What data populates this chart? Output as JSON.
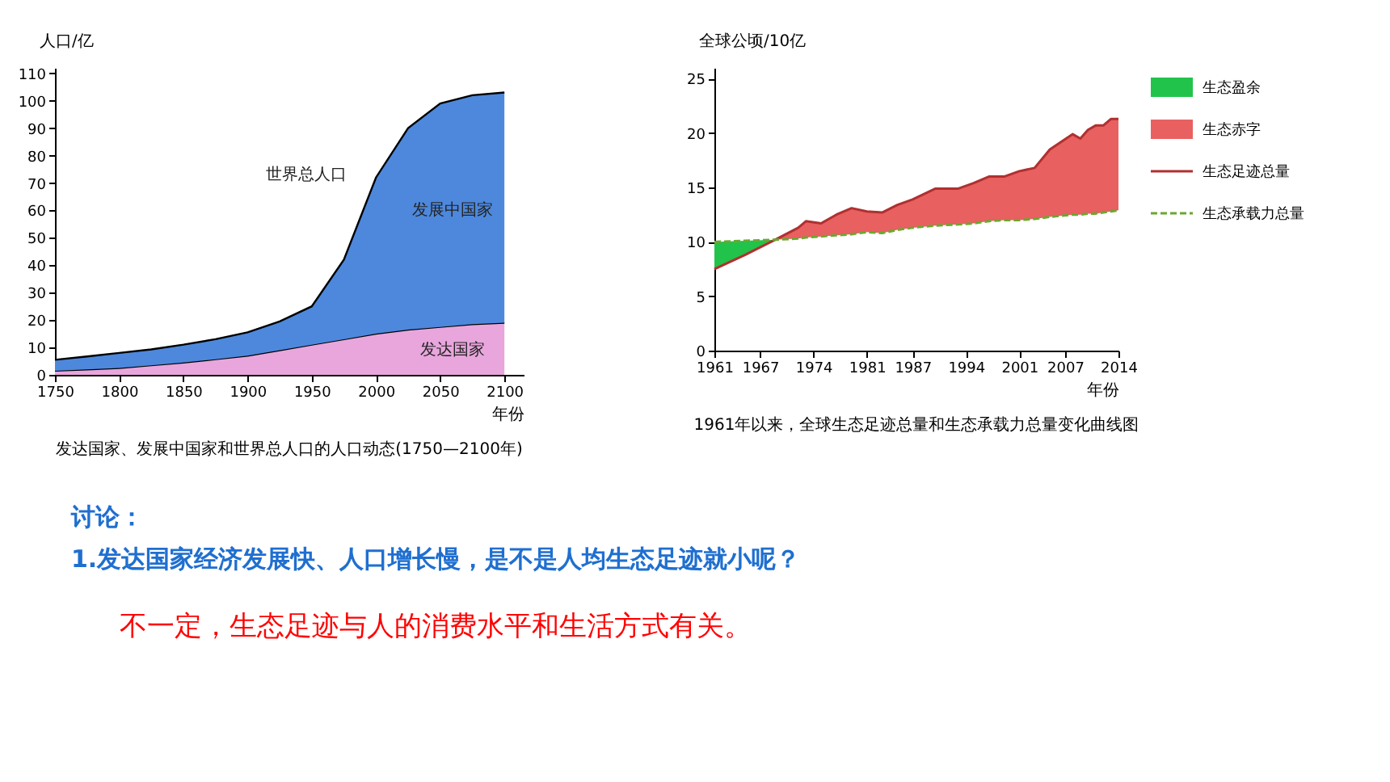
{
  "chart_data": [
    {
      "type": "area",
      "stacked": true,
      "title": "发达国家、发展中国家和世界总人口的人口动态(1750—2100年)",
      "xlabel": "年份",
      "ylabel": "人口/亿",
      "x": [
        1750,
        1775,
        1800,
        1825,
        1850,
        1875,
        1900,
        1925,
        1950,
        1975,
        2000,
        2025,
        2050,
        2075,
        2100
      ],
      "xlim": [
        1750,
        2115
      ],
      "xticks": [
        1750,
        1800,
        1850,
        1900,
        1950,
        2000,
        2050,
        2100
      ],
      "ylim": [
        0,
        112
      ],
      "yticks": [
        0,
        10,
        20,
        30,
        40,
        50,
        60,
        70,
        80,
        90,
        100,
        110
      ],
      "series": [
        {
          "name": "发达国家",
          "color": "#e8a6dc",
          "values": [
            1.5,
            2,
            2.5,
            3.5,
            4.5,
            5.7,
            7,
            9,
            11,
            13,
            15,
            16.5,
            17.5,
            18.5,
            19
          ]
        },
        {
          "name": "发展中国家",
          "color": "#4d88dc",
          "values": [
            4,
            4.7,
            5.5,
            5.8,
            6.5,
            7.3,
            8.5,
            10.5,
            14,
            29,
            57,
            73.5,
            81.5,
            83.5,
            84
          ]
        }
      ],
      "annotations": [
        {
          "text": "世界总人口",
          "x": 1990,
          "y": 60
        }
      ]
    },
    {
      "type": "line",
      "title": "1961年以来，全球生态足迹总量和生态承载力总量变化曲线图",
      "xlabel": "年份",
      "ylabel": "全球公顷/10亿",
      "xlim": [
        1961,
        2014
      ],
      "xticks": [
        1961,
        1967,
        1974,
        1981,
        1987,
        1994,
        2001,
        2007,
        2014
      ],
      "ylim": [
        0,
        26
      ],
      "yticks": [
        0,
        5,
        10,
        15,
        20,
        25
      ],
      "legend": "right",
      "marker": "none",
      "series": [
        {
          "name": "生态盈余",
          "type": "area",
          "color": "#22c34a",
          "x": [
            1961,
            1965,
            1969
          ],
          "values": [
            10.0,
            10.1,
            10.2
          ]
        },
        {
          "name": "生态赤字",
          "type": "area",
          "color": "#e86060",
          "x": [
            1969,
            1972,
            1973,
            1975,
            1977,
            1979,
            1981,
            1983,
            1985,
            1987,
            1990,
            1993,
            1995,
            1997,
            1999,
            2001,
            2003,
            2005,
            2008,
            2009,
            2010,
            2011,
            2012,
            2013,
            2014
          ],
          "values": [
            10.2,
            11.3,
            11.9,
            11.7,
            12.5,
            13.1,
            12.8,
            12.7,
            13.4,
            13.9,
            14.9,
            14.9,
            15.4,
            16.0,
            16.0,
            16.5,
            16.8,
            18.5,
            19.9,
            19.5,
            20.3,
            20.7,
            20.7,
            21.3,
            21.3
          ]
        },
        {
          "name": "生态足迹总量",
          "type": "line",
          "color": "#b03030",
          "line_style": "solid",
          "x": [
            1961,
            1965,
            1969,
            1972,
            1973,
            1975,
            1977,
            1979,
            1981,
            1983,
            1985,
            1987,
            1990,
            1993,
            1995,
            1997,
            1999,
            2001,
            2003,
            2005,
            2008,
            2009,
            2010,
            2011,
            2012,
            2013,
            2014
          ],
          "values": [
            7.5,
            8.8,
            10.2,
            11.3,
            11.9,
            11.7,
            12.5,
            13.1,
            12.8,
            12.7,
            13.4,
            13.9,
            14.9,
            14.9,
            15.4,
            16.0,
            16.0,
            16.5,
            16.8,
            18.5,
            19.9,
            19.5,
            20.3,
            20.7,
            20.7,
            21.3,
            21.3
          ]
        },
        {
          "name": "生态承载力总量",
          "type": "line",
          "color": "#6aa830",
          "line_style": "dashed",
          "x": [
            1961,
            1965,
            1969,
            1972,
            1973,
            1975,
            1977,
            1979,
            1981,
            1983,
            1985,
            1987,
            1990,
            1993,
            1995,
            1997,
            1999,
            2001,
            2003,
            2005,
            2008,
            2009,
            2010,
            2011,
            2012,
            2013,
            2014
          ],
          "values": [
            10.0,
            10.1,
            10.2,
            10.3,
            10.4,
            10.5,
            10.6,
            10.7,
            10.9,
            10.8,
            11.1,
            11.3,
            11.5,
            11.6,
            11.7,
            11.9,
            12.0,
            12.0,
            12.1,
            12.3,
            12.5,
            12.5,
            12.6,
            12.6,
            12.7,
            12.8,
            12.9
          ]
        }
      ]
    },
    {
      "type": "other",
      "annotations": [
        "讨论：",
        "1.发达国家经济发展快、人口增长慢，是不是人均生态足迹就小呢？",
        "不一定，生态足迹与人的消费水平和生活方式有关。"
      ],
      "colors": [
        "#1f6fd0",
        "#1f6fd0",
        "#ff0000"
      ]
    }
  ]
}
